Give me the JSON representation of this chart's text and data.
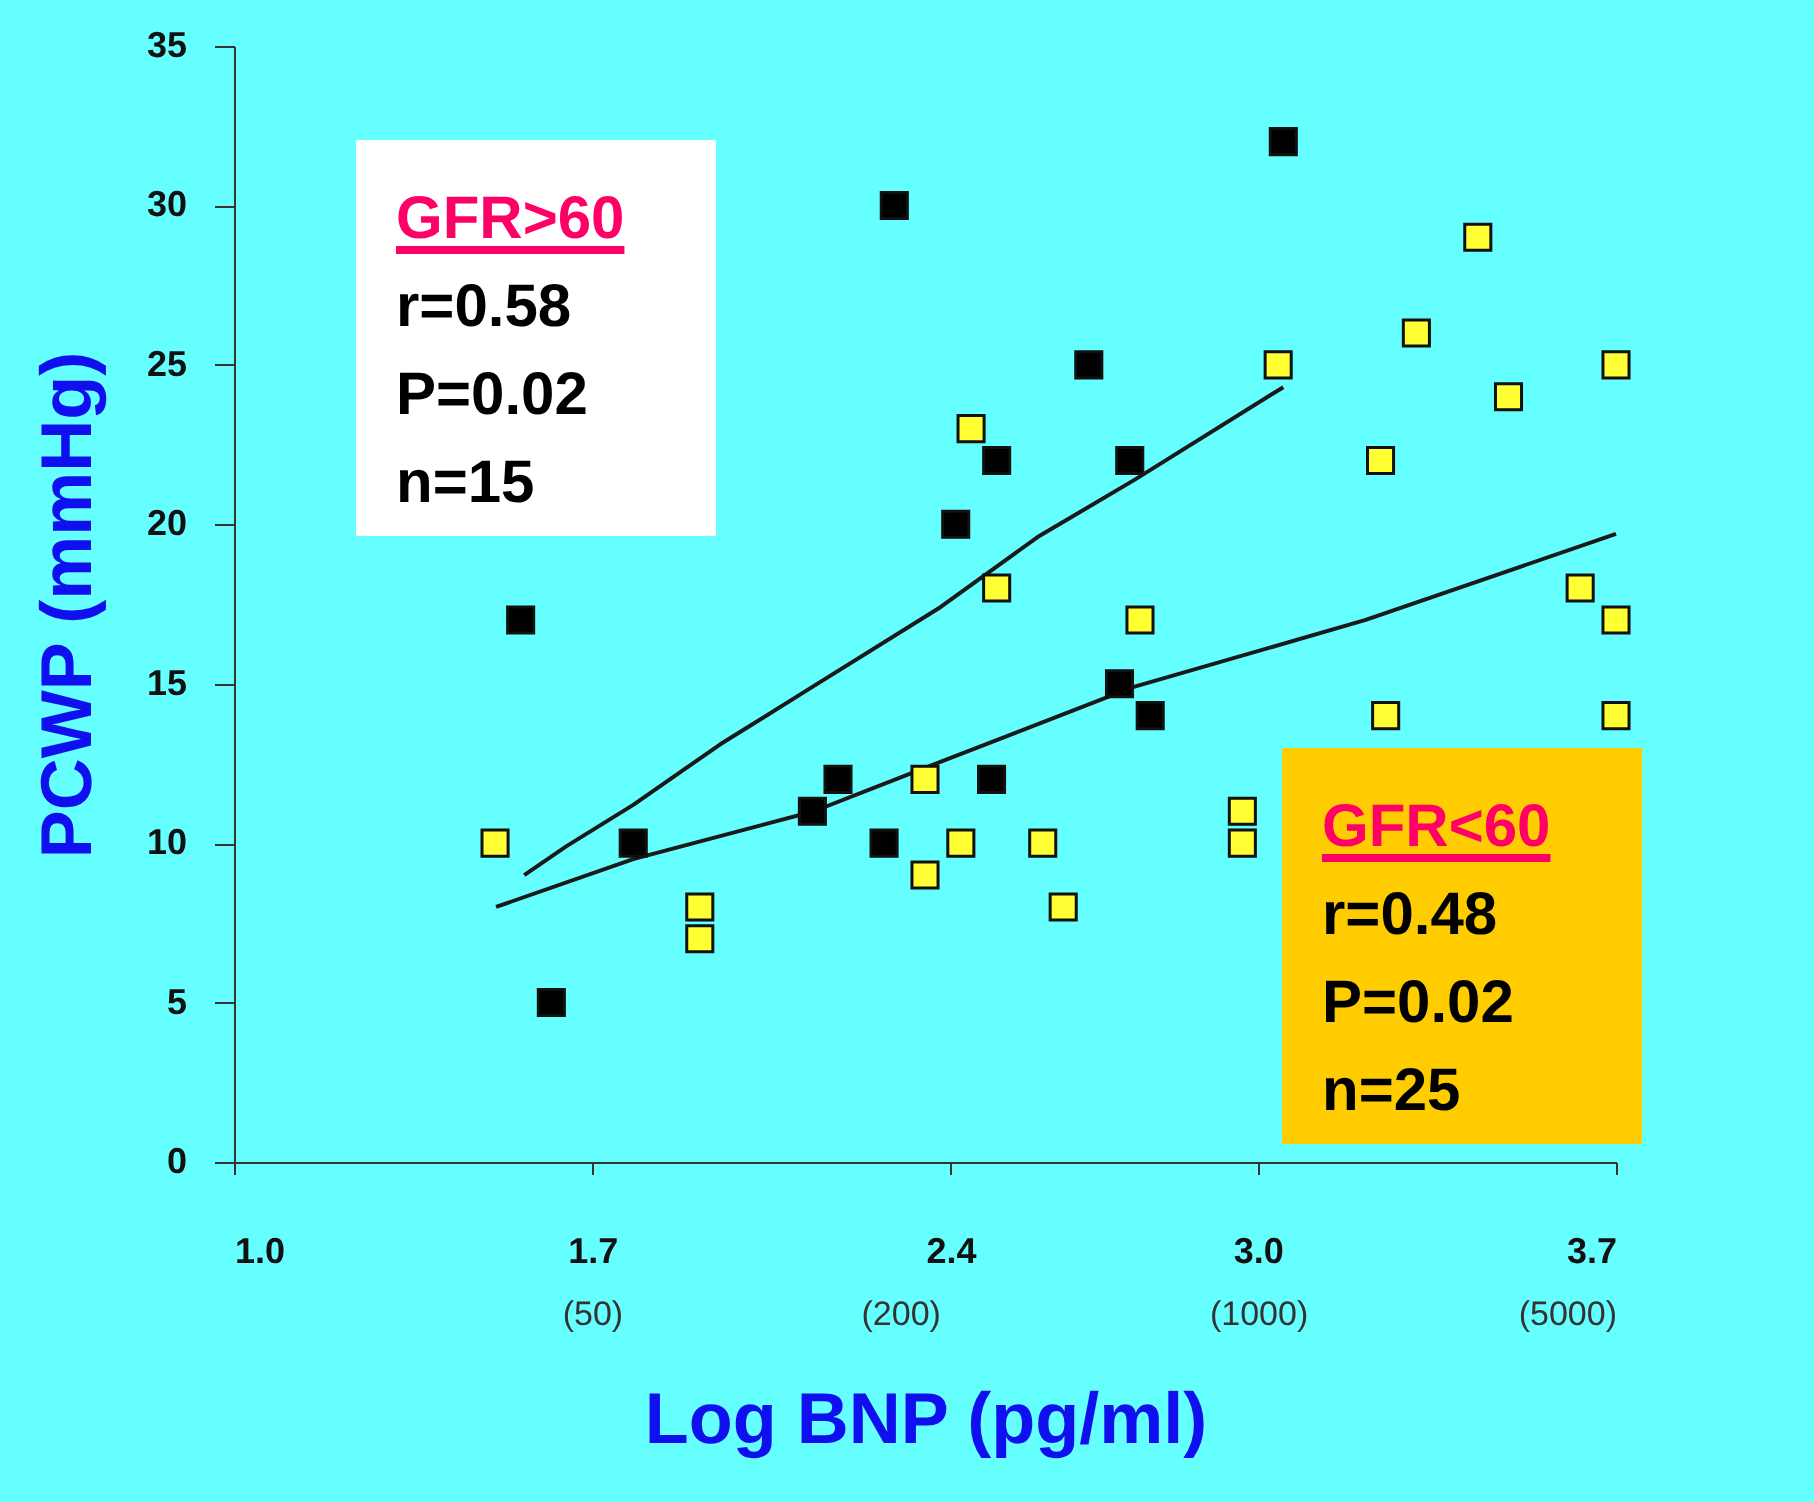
{
  "chart_data": {
    "type": "scatter",
    "xlabel": "Log BNP (pg/ml)",
    "ylabel": "PCWP (mmHg)",
    "grid": false,
    "xlim": [
      1.0,
      3.7
    ],
    "xticks": [
      {
        "value": 1.0,
        "label": "1.0"
      },
      1.7,
      2.4,
      {
        "value": 3.0,
        "label": "3.0"
      },
      3.7
    ],
    "log": "x2",
    "x2lim": [
      10,
      5000
    ],
    "x2ticks": [
      {
        "value": 50,
        "label": "(50)"
      },
      {
        "value": 200,
        "label": "(200)"
      },
      {
        "value": 1000,
        "label": "(1000)"
      },
      {
        "value": 5000,
        "label": "(5000)"
      }
    ],
    "ylim": [
      0,
      35
    ],
    "yticks": [
      0,
      5,
      10,
      15,
      20,
      25,
      30,
      35
    ],
    "series": [
      {
        "color": "#000000",
        "marker": "square",
        "x": [
          1.56,
          1.62,
          1.78,
          2.13,
          2.18,
          2.27,
          2.29,
          2.41,
          2.48,
          2.49,
          2.67,
          2.73,
          2.75,
          2.79,
          3.05
        ],
        "values": [
          17,
          5,
          10,
          11,
          12,
          10,
          30,
          20,
          12,
          22,
          25,
          15,
          22,
          14,
          32
        ]
      },
      {
        "color": "#ffff33",
        "marker": "square",
        "x": [
          1.51,
          1.91,
          1.91,
          2.35,
          2.35,
          2.42,
          2.44,
          2.49,
          2.58,
          2.62,
          2.77,
          2.97,
          2.97,
          3.04,
          3.24,
          3.25,
          3.31,
          3.43,
          3.49,
          3.63,
          3.7,
          3.7,
          3.7
        ],
        "values": [
          10,
          8,
          7,
          12,
          9,
          10,
          23,
          18,
          10,
          8,
          17,
          11,
          10,
          25,
          22,
          14,
          26,
          29,
          24,
          18,
          25,
          17,
          14
        ]
      },
      {
        "type": "line",
        "marker": "none",
        "color": "#1a1a1a",
        "x": [
          1.567,
          1.649,
          1.78,
          1.95,
          2.13,
          2.38,
          2.57,
          2.76,
          3.05
        ],
        "values": [
          9.0,
          9.9,
          11.2,
          13.1,
          14.9,
          17.4,
          19.6,
          21.4,
          24.3
        ]
      },
      {
        "type": "line",
        "marker": "none",
        "color": "#1a1a1a",
        "x": [
          1.512,
          1.78,
          2.133,
          2.34,
          2.758,
          3.211,
          3.7
        ],
        "values": [
          8.0,
          9.5,
          11.0,
          12.3,
          14.9,
          17.0,
          19.7
        ]
      }
    ],
    "annotations": [
      "GFR>60\nr=0.58\nP=0.02\nn=15",
      "GFR<60\nr=0.48\nP=0.02\nn=25"
    ]
  }
}
